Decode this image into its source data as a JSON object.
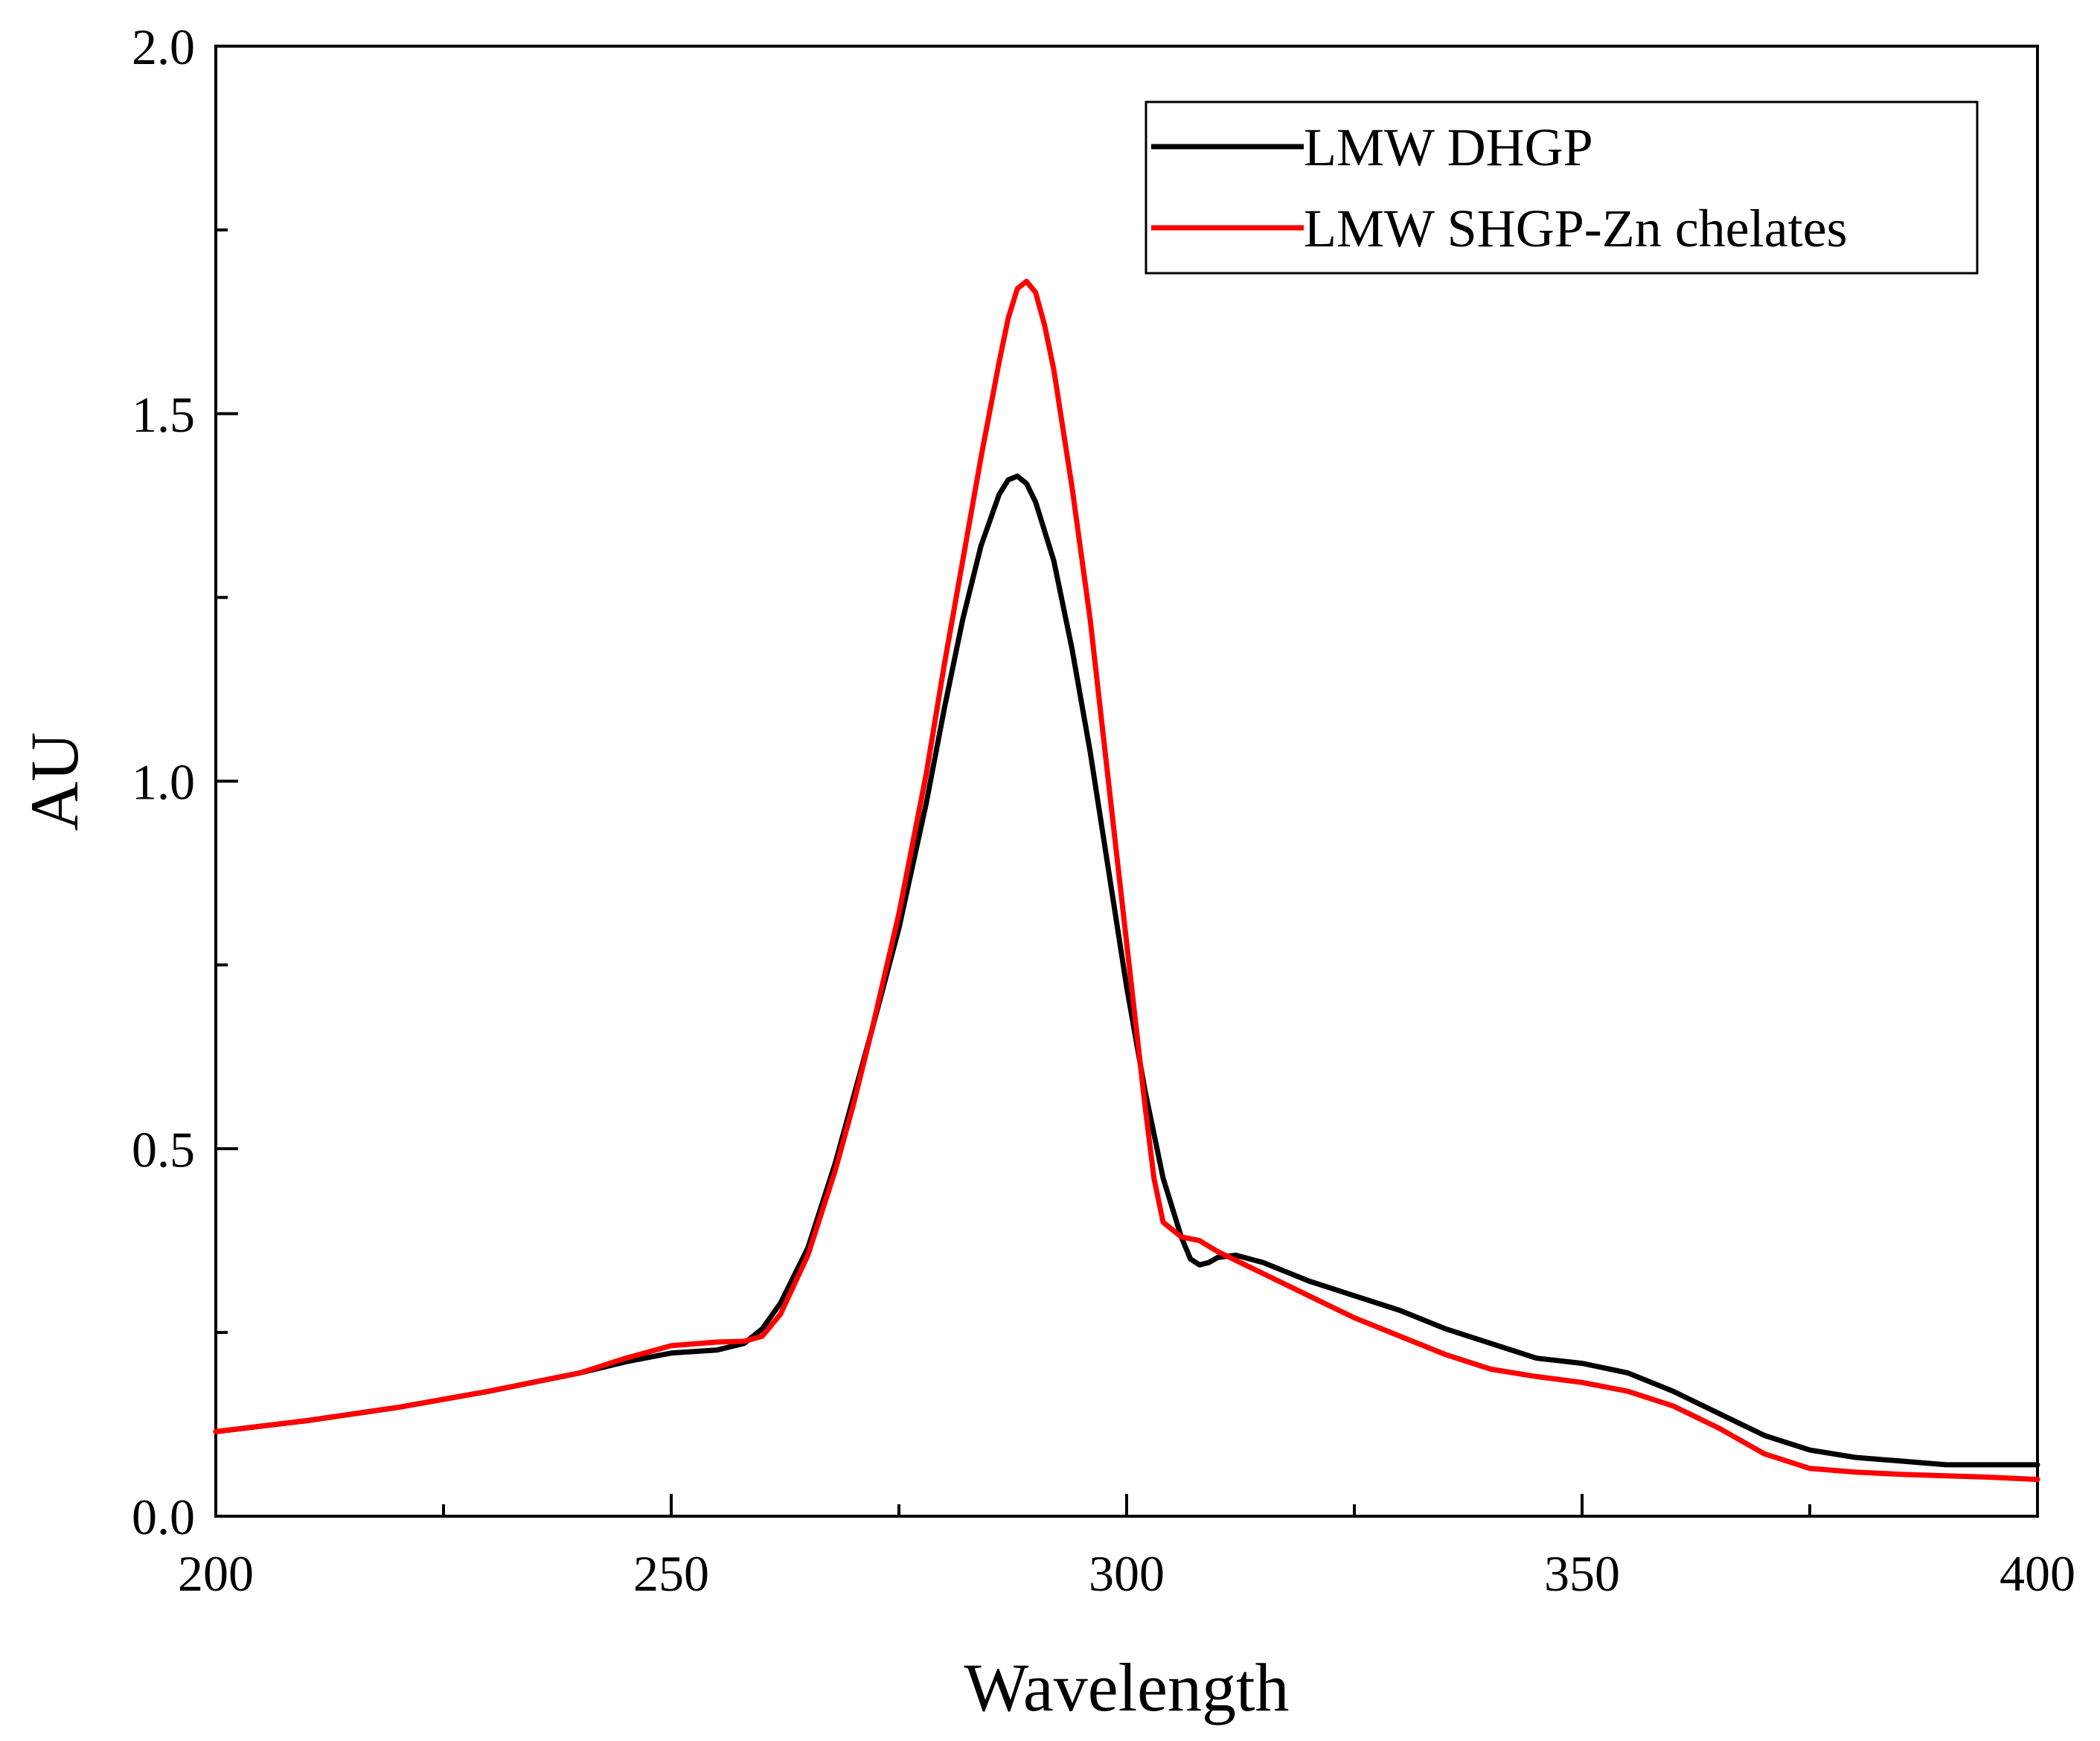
{
  "chart_data": {
    "type": "line",
    "title": "",
    "xlabel": "Wavelength",
    "ylabel": "AU",
    "xlim": [
      200,
      400
    ],
    "ylim": [
      0.0,
      2.0
    ],
    "x_ticks": [
      "200",
      "250",
      "300",
      "350",
      "400"
    ],
    "y_ticks": [
      "0.0",
      "0.5",
      "1.0",
      "1.5",
      "2.0"
    ],
    "grid": false,
    "legend_position": "top-right",
    "series": [
      {
        "name": "LMW DHGP",
        "color": "#000000",
        "x": [
          200,
          210,
          220,
          230,
          240,
          245,
          250,
          255,
          258,
          260,
          262,
          265,
          268,
          270,
          272,
          275,
          278,
          280,
          282,
          284,
          286,
          287,
          288,
          289,
          290,
          292,
          294,
          296,
          298,
          300,
          302,
          304,
          306,
          307,
          308,
          309,
          310,
          312,
          315,
          320,
          325,
          330,
          335,
          340,
          345,
          350,
          355,
          360,
          365,
          370,
          375,
          380,
          385,
          390,
          395,
          400
        ],
        "values": [
          0.115,
          0.13,
          0.148,
          0.17,
          0.195,
          0.21,
          0.222,
          0.226,
          0.235,
          0.255,
          0.29,
          0.365,
          0.48,
          0.57,
          0.66,
          0.8,
          0.97,
          1.1,
          1.22,
          1.32,
          1.39,
          1.41,
          1.415,
          1.405,
          1.38,
          1.3,
          1.18,
          1.04,
          0.88,
          0.72,
          0.58,
          0.46,
          0.38,
          0.35,
          0.342,
          0.345,
          0.352,
          0.355,
          0.345,
          0.32,
          0.3,
          0.28,
          0.255,
          0.235,
          0.215,
          0.208,
          0.195,
          0.17,
          0.14,
          0.11,
          0.09,
          0.08,
          0.075,
          0.07,
          0.07,
          0.07
        ]
      },
      {
        "name": "LMW SHGP-Zn chelates",
        "color": "#ff0000",
        "x": [
          200,
          210,
          220,
          230,
          240,
          245,
          250,
          255,
          258,
          260,
          262,
          265,
          268,
          270,
          272,
          275,
          278,
          280,
          282,
          284,
          286,
          287,
          288,
          289,
          290,
          291,
          292,
          294,
          296,
          298,
          300,
          302,
          303,
          304,
          306,
          308,
          310,
          315,
          320,
          325,
          330,
          335,
          340,
          345,
          350,
          355,
          360,
          365,
          370,
          375,
          380,
          385,
          390,
          395,
          400
        ],
        "values": [
          0.115,
          0.13,
          0.148,
          0.17,
          0.195,
          0.215,
          0.232,
          0.237,
          0.238,
          0.245,
          0.275,
          0.355,
          0.47,
          0.56,
          0.66,
          0.82,
          1.01,
          1.16,
          1.3,
          1.44,
          1.57,
          1.63,
          1.67,
          1.68,
          1.665,
          1.62,
          1.56,
          1.4,
          1.22,
          1.0,
          0.78,
          0.56,
          0.46,
          0.4,
          0.38,
          0.375,
          0.36,
          0.33,
          0.3,
          0.27,
          0.245,
          0.22,
          0.2,
          0.19,
          0.182,
          0.17,
          0.15,
          0.12,
          0.085,
          0.065,
          0.06,
          0.057,
          0.055,
          0.053,
          0.05
        ]
      }
    ]
  }
}
